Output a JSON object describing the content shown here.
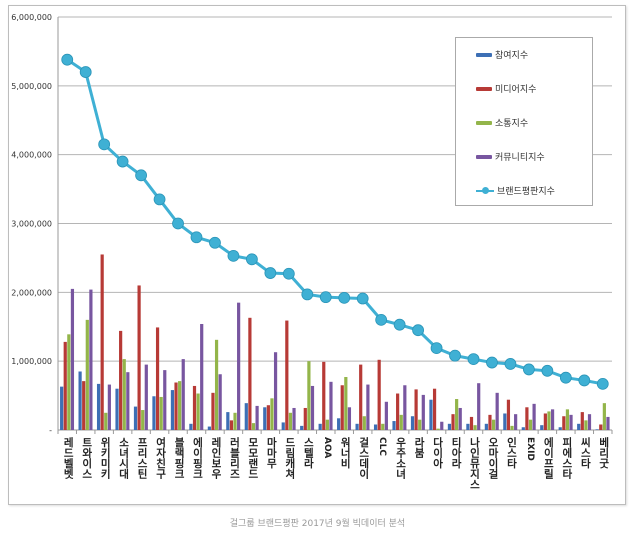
{
  "chart_data": {
    "type": "bar",
    "caption": "걸그룹 브랜드평판 2017년 9월 빅데이터 분석",
    "ylim": [
      0,
      6000000
    ],
    "yticks": [
      "-",
      "1,000,000",
      "2,000,000",
      "3,000,000",
      "4,000,000",
      "5,000,000",
      "6,000,000"
    ],
    "ytick_values": [
      0,
      1000000,
      2000000,
      3000000,
      4000000,
      5000000,
      6000000
    ],
    "grid": true,
    "legend_position": "top-right",
    "categories": [
      "레드벨벳",
      "트와이스",
      "위키미키",
      "소녀시대",
      "프리스틴",
      "여자친구",
      "블랙핑크",
      "에이핑크",
      "레인보우",
      "러블리즈",
      "모모랜드",
      "마마무",
      "드림캐쳐",
      "스텔라",
      "AOA",
      "워너비",
      "걸스데이",
      "CLC",
      "우주소녀",
      "라붐",
      "다이아",
      "티아라",
      "나인뮤지스",
      "오마이걸",
      "인스타",
      "EXID",
      "에이프릴",
      "피에스타",
      "씨스타",
      "베리굿"
    ],
    "series": [
      {
        "name": "참여지수",
        "kind": "bar",
        "color": "#3d6fb5",
        "values": [
          630000,
          850000,
          670000,
          600000,
          340000,
          490000,
          580000,
          90000,
          50000,
          260000,
          390000,
          330000,
          110000,
          60000,
          90000,
          170000,
          90000,
          80000,
          130000,
          200000,
          440000,
          90000,
          90000,
          90000,
          240000,
          40000,
          70000,
          40000,
          90000,
          10000
        ]
      },
      {
        "name": "미디어지수",
        "kind": "bar",
        "color": "#b73a36",
        "values": [
          1280000,
          710000,
          2550000,
          1440000,
          2100000,
          1490000,
          690000,
          640000,
          540000,
          140000,
          1630000,
          360000,
          1590000,
          320000,
          990000,
          650000,
          950000,
          1020000,
          530000,
          590000,
          600000,
          230000,
          190000,
          220000,
          440000,
          330000,
          240000,
          200000,
          260000,
          80000
        ]
      },
      {
        "name": "소통지수",
        "kind": "bar",
        "color": "#93b54a",
        "values": [
          1390000,
          1600000,
          250000,
          1030000,
          290000,
          480000,
          710000,
          530000,
          1310000,
          250000,
          100000,
          460000,
          250000,
          1000000,
          150000,
          770000,
          200000,
          90000,
          220000,
          150000,
          20000,
          450000,
          70000,
          150000,
          60000,
          150000,
          270000,
          300000,
          140000,
          390000
        ]
      },
      {
        "name": "커뮤니티지수",
        "kind": "bar",
        "color": "#7856a0",
        "values": [
          2050000,
          2040000,
          660000,
          840000,
          950000,
          870000,
          1030000,
          1540000,
          810000,
          1850000,
          350000,
          1130000,
          320000,
          640000,
          700000,
          330000,
          660000,
          410000,
          650000,
          510000,
          120000,
          320000,
          680000,
          540000,
          230000,
          380000,
          300000,
          220000,
          230000,
          190000
        ]
      },
      {
        "name": "브랜드평판지수",
        "kind": "line",
        "color": "#3fb0d4",
        "values": [
          5380000,
          5200000,
          4150000,
          3900000,
          3700000,
          3350000,
          3000000,
          2800000,
          2720000,
          2530000,
          2480000,
          2280000,
          2270000,
          1970000,
          1930000,
          1920000,
          1910000,
          1600000,
          1530000,
          1450000,
          1190000,
          1080000,
          1030000,
          980000,
          960000,
          880000,
          860000,
          760000,
          720000,
          670000
        ]
      }
    ]
  }
}
